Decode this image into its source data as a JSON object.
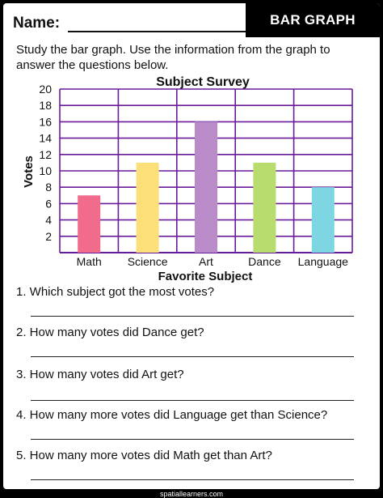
{
  "header": {
    "name_label": "Name:",
    "banner": "BAR GRAPH"
  },
  "intro": "Study the bar graph. Use the information from the graph to answer the questions below.",
  "chart_data": {
    "type": "bar",
    "title": "Subject Survey",
    "xlabel": "Favorite Subject",
    "ylabel": "Votes",
    "categories": [
      "Math",
      "Science",
      "Art",
      "Dance",
      "Language"
    ],
    "values": [
      7,
      11,
      16,
      11,
      8
    ],
    "colors": [
      "#f06b8c",
      "#fbe07a",
      "#b98cc9",
      "#b8dc6e",
      "#7fd6e3"
    ],
    "ylim": [
      0,
      20
    ],
    "yticks": [
      2,
      4,
      6,
      8,
      10,
      12,
      14,
      16,
      18,
      20
    ],
    "grid": true,
    "grid_color": "#6a1b9a"
  },
  "questions": [
    "1. Which subject got the most votes?",
    "2. How many votes did Dance get?",
    "3. How many votes did Art get?",
    "4. How many more votes did Language get than Science?",
    "5. How many more votes did Math get than Art?"
  ],
  "credit": "spatiallearners.com"
}
